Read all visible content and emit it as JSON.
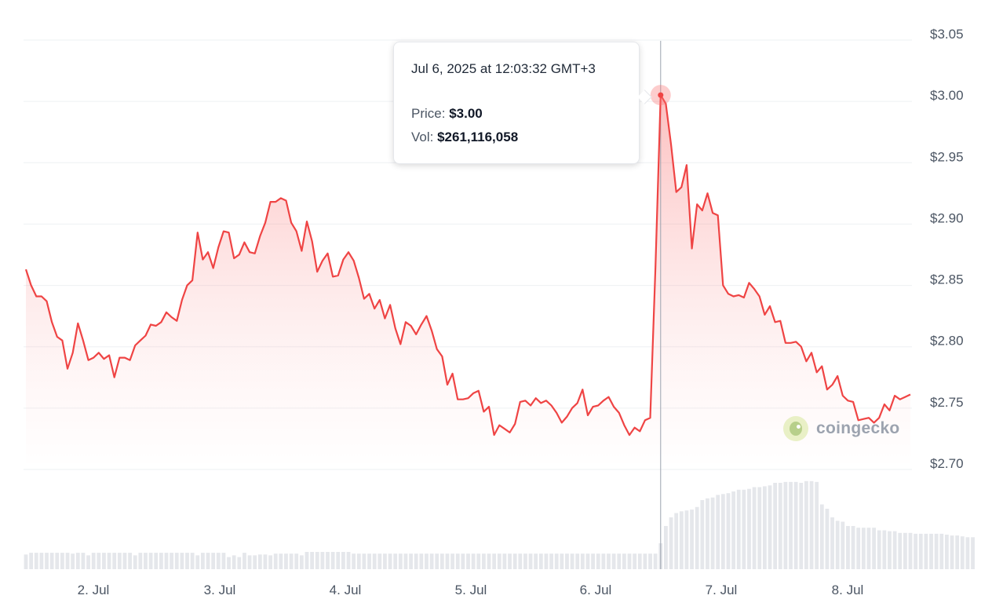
{
  "chart_data": {
    "type": "line",
    "x_tick_labels": [
      "2. Jul",
      "3. Jul",
      "4. Jul",
      "5. Jul",
      "6. Jul",
      "7. Jul",
      "8. Jul"
    ],
    "y_tick_labels": [
      "$3.05",
      "$3.00",
      "$2.95",
      "$2.90",
      "$2.85",
      "$2.80",
      "$2.75",
      "$2.70"
    ],
    "ylim": [
      2.7,
      3.05
    ],
    "x_start": "Jul 1 (~15:00)",
    "x_end": "Jul 8 (~12:00)",
    "grid": true,
    "series": [
      {
        "name": "Price",
        "color": "#ef4444",
        "values": [
          2.858,
          2.845,
          2.836,
          2.836,
          2.832,
          2.815,
          2.803,
          2.8,
          2.777,
          2.79,
          2.814,
          2.8,
          2.784,
          2.786,
          2.79,
          2.785,
          2.788,
          2.77,
          2.786,
          2.786,
          2.784,
          2.796,
          2.8,
          2.804,
          2.813,
          2.812,
          2.815,
          2.823,
          2.819,
          2.816,
          2.833,
          2.845,
          2.849,
          2.888,
          2.866,
          2.872,
          2.859,
          2.876,
          2.889,
          2.888,
          2.867,
          2.87,
          2.88,
          2.872,
          2.871,
          2.885,
          2.896,
          2.913,
          2.913,
          2.916,
          2.914,
          2.896,
          2.889,
          2.873,
          2.897,
          2.881,
          2.856,
          2.865,
          2.871,
          2.852,
          2.853,
          2.866,
          2.872,
          2.865,
          2.851,
          2.834,
          2.838,
          2.826,
          2.833,
          2.818,
          2.829,
          2.81,
          2.797,
          2.815,
          2.812,
          2.805,
          2.813,
          2.82,
          2.808,
          2.793,
          2.787,
          2.764,
          2.773,
          2.752,
          2.752,
          2.753,
          2.757,
          2.759,
          2.742,
          2.746,
          2.723,
          2.731,
          2.728,
          2.725,
          2.732,
          2.75,
          2.751,
          2.747,
          2.753,
          2.749,
          2.751,
          2.747,
          2.741,
          2.733,
          2.738,
          2.745,
          2.749,
          2.76,
          2.739,
          2.746,
          2.747,
          2.751,
          2.754,
          2.746,
          2.741,
          2.731,
          2.723,
          2.729,
          2.726,
          2.735,
          2.737,
          2.86,
          3.0,
          2.993,
          2.96,
          2.921,
          2.925,
          2.943,
          2.875,
          2.911,
          2.906,
          2.92,
          2.904,
          2.902,
          2.845,
          2.838,
          2.836,
          2.837,
          2.835,
          2.847,
          2.842,
          2.836,
          2.821,
          2.828,
          2.815,
          2.816,
          2.798,
          2.798,
          2.799,
          2.795,
          2.783,
          2.79,
          2.774,
          2.779,
          2.76,
          2.764,
          2.771,
          2.755,
          2.751,
          2.75,
          2.735,
          2.736,
          2.737,
          2.733,
          2.737,
          2.748,
          2.743,
          2.755,
          2.752,
          2.754,
          2.756
        ]
      },
      {
        "name": "Vol",
        "color": "#d1d5db",
        "values": [
          17,
          19,
          19,
          19,
          19,
          19,
          19,
          19,
          19,
          18,
          19,
          19,
          16,
          19,
          19,
          19,
          19,
          19,
          19,
          19,
          19,
          16,
          19,
          19,
          19,
          19,
          19,
          19,
          19,
          19,
          19,
          19,
          19,
          16,
          19,
          19,
          19,
          19,
          19,
          14,
          16,
          14,
          19,
          16,
          16,
          17,
          17,
          16,
          18,
          18,
          18,
          18,
          18,
          16,
          20,
          20,
          20,
          20,
          20,
          20,
          20,
          20,
          20,
          18,
          18,
          18,
          18,
          18,
          18,
          18,
          18,
          18,
          18,
          18,
          18,
          18,
          18,
          18,
          18,
          18,
          18,
          18,
          18,
          18,
          18,
          18,
          18,
          18,
          18,
          18,
          18,
          18,
          18,
          18,
          18,
          18,
          18,
          18,
          18,
          18,
          18,
          18,
          18,
          18,
          18,
          18,
          18,
          18,
          18,
          18,
          18,
          18,
          18,
          18,
          18,
          18,
          18,
          18,
          18,
          18,
          18,
          18,
          30,
          50,
          60,
          65,
          67,
          68,
          69,
          72,
          80,
          82,
          83,
          86,
          87,
          88,
          90,
          92,
          92,
          93,
          95,
          95,
          96,
          97,
          100,
          100,
          101,
          101,
          101,
          100,
          102,
          102,
          101,
          75,
          70,
          60,
          56,
          55,
          50,
          50,
          48,
          48,
          48,
          48,
          45,
          45,
          44,
          44,
          42,
          42,
          42,
          41,
          41,
          41,
          41,
          41,
          41,
          40,
          39,
          39,
          38,
          37,
          37
        ]
      }
    ],
    "tooltip": {
      "title": "Jul 6, 2025 at 12:03:32 GMT+3",
      "price_label": "Price:",
      "price_value": "$3.00",
      "vol_label": "Vol:",
      "vol_value": "$261,116,058"
    }
  },
  "brand": {
    "name": "coingecko",
    "icon": "coingecko-gecko-icon"
  }
}
